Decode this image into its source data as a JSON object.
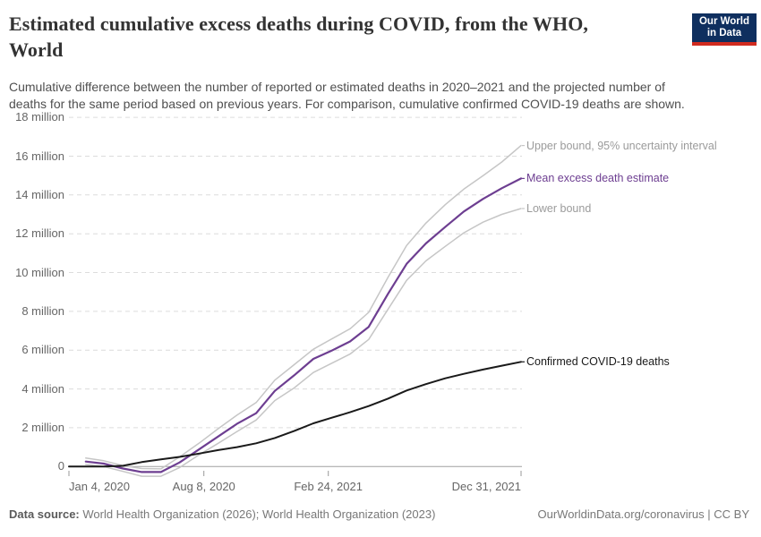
{
  "header": {
    "title_lines": [
      "Estimated cumulative excess deaths during COVID, from the WHO,",
      "World"
    ],
    "subtitle_lines": [
      "Cumulative difference between the number of reported or estimated deaths in 2020–2021 and the projected number of",
      "deaths for the same period based on previous years. For comparison, cumulative confirmed COVID-19 deaths are shown."
    ],
    "logo": {
      "line1": "Our World",
      "line2": "in Data",
      "bg_color": "#0f2f5f",
      "accent_color": "#d12b1f"
    }
  },
  "chart_data": {
    "type": "line",
    "title": "Estimated cumulative excess deaths during COVID, from the WHO, World",
    "xlabel": "",
    "ylabel": "",
    "y_unit": "million deaths",
    "x_unit": "days since Jan 4, 2020",
    "grid": true,
    "ylim_millions": [
      0,
      18
    ],
    "x_range_days": [
      0,
      727
    ],
    "y_ticks": [
      {
        "value": 0,
        "label": "0"
      },
      {
        "value": 2,
        "label": "2 million"
      },
      {
        "value": 4,
        "label": "4 million"
      },
      {
        "value": 6,
        "label": "6 million"
      },
      {
        "value": 8,
        "label": "8 million"
      },
      {
        "value": 10,
        "label": "10 million"
      },
      {
        "value": 12,
        "label": "12 million"
      },
      {
        "value": 14,
        "label": "14 million"
      },
      {
        "value": 16,
        "label": "16 million"
      },
      {
        "value": 18,
        "label": "18 million"
      }
    ],
    "x_ticks": [
      {
        "day": 0,
        "label": "Jan 4, 2020"
      },
      {
        "day": 217,
        "label": "Aug 8, 2020"
      },
      {
        "day": 417,
        "label": "Feb 24, 2021"
      },
      {
        "day": 727,
        "label": "Dec 31, 2021"
      }
    ],
    "series": [
      {
        "key": "upper_bound",
        "label": "Upper bound, 95% uncertainty interval",
        "color": "#c6c6c6",
        "label_color": "#9b9b9b",
        "points": [
          [
            27,
            0.44
          ],
          [
            56,
            0.3
          ],
          [
            87,
            0.05
          ],
          [
            117,
            -0.1
          ],
          [
            148,
            -0.12
          ],
          [
            178,
            0.5
          ],
          [
            209,
            1.2
          ],
          [
            240,
            1.95
          ],
          [
            270,
            2.65
          ],
          [
            301,
            3.3
          ],
          [
            331,
            4.45
          ],
          [
            362,
            5.25
          ],
          [
            393,
            6.05
          ],
          [
            421,
            6.55
          ],
          [
            452,
            7.1
          ],
          [
            482,
            7.95
          ],
          [
            513,
            9.75
          ],
          [
            543,
            11.4
          ],
          [
            574,
            12.55
          ],
          [
            605,
            13.5
          ],
          [
            635,
            14.3
          ],
          [
            666,
            15.0
          ],
          [
            696,
            15.7
          ],
          [
            727,
            16.55
          ]
        ]
      },
      {
        "key": "lower_bound",
        "label": "Lower bound",
        "color": "#c6c6c6",
        "label_color": "#9b9b9b",
        "points": [
          [
            27,
            0.11
          ],
          [
            56,
            0.0
          ],
          [
            87,
            -0.25
          ],
          [
            117,
            -0.5
          ],
          [
            148,
            -0.5
          ],
          [
            178,
            -0.05
          ],
          [
            209,
            0.6
          ],
          [
            240,
            1.2
          ],
          [
            270,
            1.8
          ],
          [
            301,
            2.4
          ],
          [
            331,
            3.4
          ],
          [
            362,
            4.05
          ],
          [
            393,
            4.85
          ],
          [
            421,
            5.3
          ],
          [
            452,
            5.8
          ],
          [
            482,
            6.55
          ],
          [
            513,
            8.1
          ],
          [
            543,
            9.6
          ],
          [
            574,
            10.6
          ],
          [
            605,
            11.35
          ],
          [
            635,
            12.05
          ],
          [
            666,
            12.6
          ],
          [
            696,
            13.0
          ],
          [
            727,
            13.3
          ]
        ]
      },
      {
        "key": "mean",
        "label": "Mean excess death estimate",
        "color": "#6d3e91",
        "label_color": "#6d3e91",
        "points": [
          [
            27,
            0.26
          ],
          [
            56,
            0.15
          ],
          [
            87,
            -0.1
          ],
          [
            117,
            -0.28
          ],
          [
            148,
            -0.28
          ],
          [
            178,
            0.21
          ],
          [
            209,
            0.88
          ],
          [
            240,
            1.55
          ],
          [
            270,
            2.2
          ],
          [
            301,
            2.75
          ],
          [
            331,
            3.9
          ],
          [
            362,
            4.7
          ],
          [
            393,
            5.55
          ],
          [
            421,
            5.95
          ],
          [
            452,
            6.45
          ],
          [
            482,
            7.2
          ],
          [
            513,
            8.9
          ],
          [
            543,
            10.45
          ],
          [
            574,
            11.5
          ],
          [
            605,
            12.35
          ],
          [
            635,
            13.15
          ],
          [
            666,
            13.8
          ],
          [
            696,
            14.35
          ],
          [
            727,
            14.85
          ]
        ]
      },
      {
        "key": "confirmed",
        "label": "Confirmed COVID-19 deaths",
        "color": "#1a1a1a",
        "label_color": "#1a1a1a",
        "points": [
          [
            0,
            0.0
          ],
          [
            27,
            0.0
          ],
          [
            56,
            0.0
          ],
          [
            87,
            0.04
          ],
          [
            117,
            0.23
          ],
          [
            148,
            0.37
          ],
          [
            178,
            0.5
          ],
          [
            209,
            0.67
          ],
          [
            240,
            0.85
          ],
          [
            270,
            1.0
          ],
          [
            301,
            1.2
          ],
          [
            331,
            1.47
          ],
          [
            362,
            1.83
          ],
          [
            393,
            2.23
          ],
          [
            421,
            2.5
          ],
          [
            452,
            2.8
          ],
          [
            482,
            3.12
          ],
          [
            513,
            3.5
          ],
          [
            543,
            3.92
          ],
          [
            574,
            4.25
          ],
          [
            605,
            4.55
          ],
          [
            635,
            4.78
          ],
          [
            666,
            5.0
          ],
          [
            696,
            5.2
          ],
          [
            727,
            5.4
          ]
        ]
      }
    ]
  },
  "footer": {
    "source_label": "Data source:",
    "source_text": " World Health Organization (2026); World Health Organization (2023)",
    "right_text": "OurWorldinData.org/coronavirus | CC BY"
  }
}
